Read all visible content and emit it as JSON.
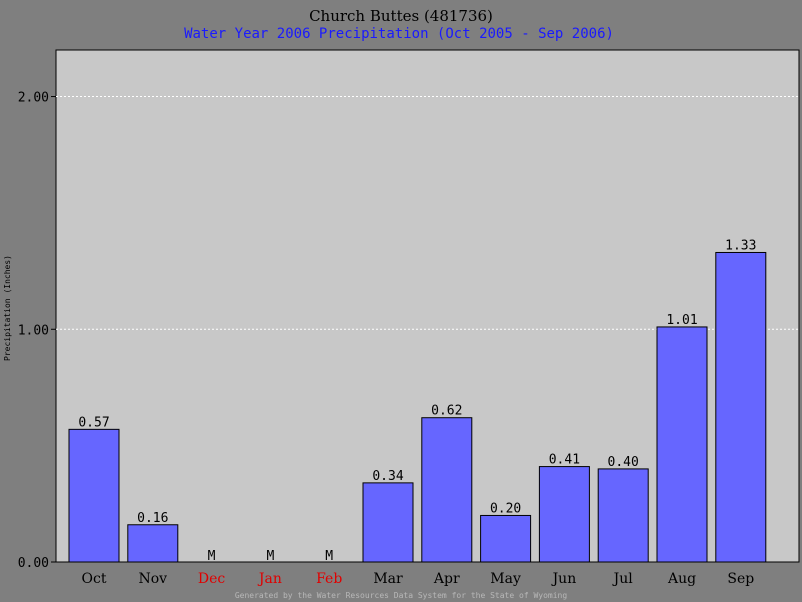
{
  "colors": {
    "background": "#7f7f7f",
    "plot_background": "#c8c8c8",
    "bar_fill": "#6666ff",
    "subtitle": "#1a1aff",
    "missing": "#e00000",
    "footer": "#b8b8b8",
    "grid": "#ffffff"
  },
  "chart_data": {
    "type": "bar",
    "title": "Church Buttes (481736)",
    "subtitle": "Water Year 2006 Precipitation (Oct 2005 - Sep 2006)",
    "xlabel": "",
    "ylabel": "Precipitation (Inches)",
    "ylim": [
      0,
      2.2
    ],
    "yticks": [
      0,
      1,
      2
    ],
    "ytick_labels": [
      "0.00",
      "1.00",
      "2.00"
    ],
    "grid": true,
    "categories": [
      "Oct",
      "Nov",
      "Dec",
      "Jan",
      "Feb",
      "Mar",
      "Apr",
      "May",
      "Jun",
      "Jul",
      "Aug",
      "Sep"
    ],
    "values": [
      0.57,
      0.16,
      null,
      null,
      null,
      0.34,
      0.62,
      0.2,
      0.41,
      0.4,
      1.01,
      1.33
    ],
    "value_labels": [
      "0.57",
      "0.16",
      "M",
      "M",
      "M",
      "0.34",
      "0.62",
      "0.20",
      "0.41",
      "0.40",
      "1.01",
      "1.33"
    ],
    "missing": [
      false,
      false,
      true,
      true,
      true,
      false,
      false,
      false,
      false,
      false,
      false,
      false
    ]
  },
  "footer": "Generated by the Water Resources Data System for the State of Wyoming"
}
